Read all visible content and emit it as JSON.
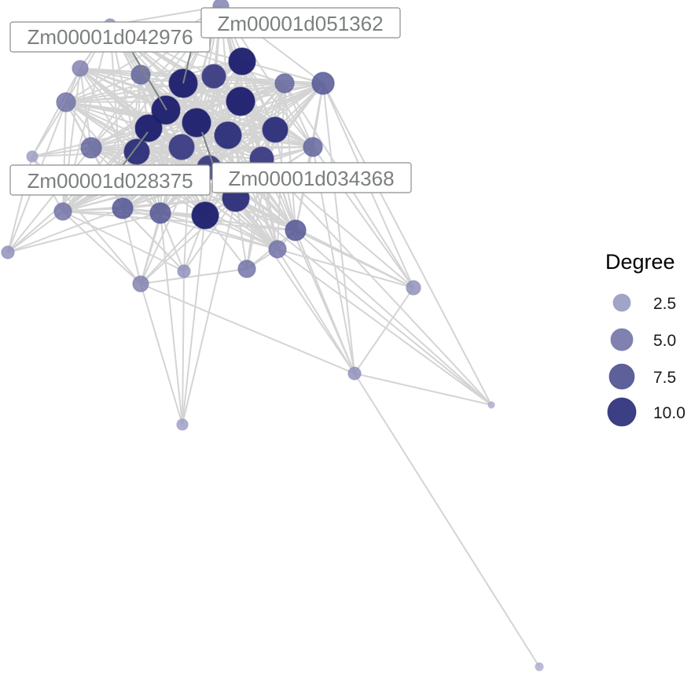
{
  "legend": {
    "title": "Degree",
    "entries": [
      {
        "label": "2.5",
        "degree": 2.5
      },
      {
        "label": "5.0",
        "degree": 5.0
      },
      {
        "label": "7.5",
        "degree": 7.5
      },
      {
        "label": "10.0",
        "degree": 10.0
      }
    ]
  },
  "colors": {
    "low": "#a9aacd",
    "high": "#1b1d6e",
    "edge": "#d4d4d4",
    "label_text": "#7b7f80",
    "label_border": "#8a8f8f",
    "leader": "#7a8483"
  },
  "labels": [
    {
      "text": "Zm00001d042976"
    },
    {
      "text": "Zm00001d051362"
    },
    {
      "text": "Zm00001d028375"
    },
    {
      "text": "Zm00001d034368"
    }
  ]
}
